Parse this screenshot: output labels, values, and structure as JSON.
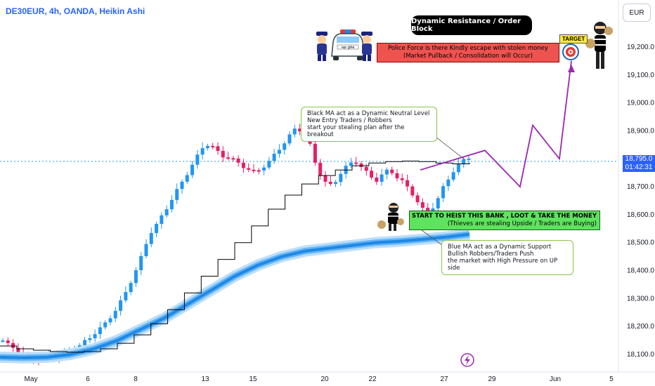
{
  "header": {
    "title": "DE30EUR, 4h, OANDA, Heikin Ashi",
    "currency_button": "EUR"
  },
  "current_price": {
    "price": "18,795.0",
    "countdown": "01:42:31"
  },
  "annotations": {
    "black_pill": "Dynamic Resistance / Order Block",
    "red_box_line1": "Police Force is there Kindly escape with stolen money",
    "red_box_line2": "(Market Pullback / Consolidation will Occur)",
    "target": "TARGET",
    "black_ma_line1": "Black MA act as a Dynamic Neutral Level",
    "black_ma_line2": "New Entry Traders / Robbers",
    "black_ma_line3": "start your stealing plan after the breakout",
    "green_box_line1": "START TO HEIST THIS BANK , LOOT & TAKE THE MONEY",
    "green_box_line2": "(Thieves are stealing Upside / Traders are Buying)",
    "blue_ma_line1": "Blue MA act as a Dynamic Support",
    "blue_ma_line2": "Bullish Robbers/Traders Push",
    "blue_ma_line3": "the market with High Pressure on UP side",
    "police_car_plate": "शहर पुलिस"
  },
  "colors": {
    "bull": "#2196f3",
    "bear": "#e91e63",
    "black_ma": "#000000",
    "blue_ma": "#1e88e5",
    "projection": "#9c27b0",
    "price_line": "#2196f3"
  },
  "chart_data": {
    "type": "candlestick",
    "style": "Heikin Ashi",
    "symbol": "DE30EUR",
    "timeframe": "4h",
    "source": "OANDA",
    "y_axis": {
      "ticks": [
        18100,
        18200,
        18300,
        18400,
        18500,
        18600,
        18700,
        18800,
        18900,
        19000,
        19100,
        19200
      ],
      "tick_labels": [
        "18,100.0",
        "18,200.0",
        "18,300.0",
        "18,400.0",
        "18,500.0",
        "18,600.0",
        "18,700.0",
        "18,800.0",
        "18,900.0",
        "19,000.0",
        "19,100.0",
        "19,200.0"
      ]
    },
    "x_axis": {
      "tick_labels": [
        "May",
        "6",
        "8",
        "13",
        "15",
        "20",
        "22",
        "27",
        "29",
        "Jun",
        "5"
      ]
    },
    "price_path": [
      18150,
      18130,
      18120,
      18100,
      18090,
      18080,
      18085,
      18095,
      18090,
      18100,
      18110,
      18120,
      18140,
      18160,
      18180,
      18200,
      18230,
      18260,
      18300,
      18350,
      18400,
      18460,
      18530,
      18560,
      18600,
      18640,
      18680,
      18720,
      18760,
      18800,
      18840,
      18855,
      18830,
      18810,
      18805,
      18790,
      18775,
      18760,
      18750,
      18770,
      18790,
      18820,
      18850,
      18880,
      18910,
      18900,
      18860,
      18780,
      18730,
      18700,
      18720,
      18760,
      18780,
      18790,
      18770,
      18740,
      18720,
      18745,
      18760,
      18740,
      18720,
      18690,
      18660,
      18620,
      18610,
      18640,
      18690,
      18730,
      18770,
      18790,
      18805
    ],
    "black_ma": [
      18130,
      18120,
      18115,
      18110,
      18108,
      18110,
      18120,
      18140,
      18170,
      18210,
      18260,
      18320,
      18380,
      18440,
      18500,
      18560,
      18620,
      18670,
      18710,
      18740,
      18760,
      18775,
      18785,
      18790,
      18792,
      18790,
      18785,
      18782,
      18785
    ],
    "blue_ma": [
      18090,
      18088,
      18090,
      18100,
      18120,
      18150,
      18190,
      18230,
      18280,
      18330,
      18380,
      18420,
      18450,
      18470,
      18480,
      18490,
      18500,
      18505,
      18512,
      18520,
      18530
    ],
    "projection": [
      18760,
      18830,
      18700,
      18920,
      18800,
      19150
    ]
  }
}
